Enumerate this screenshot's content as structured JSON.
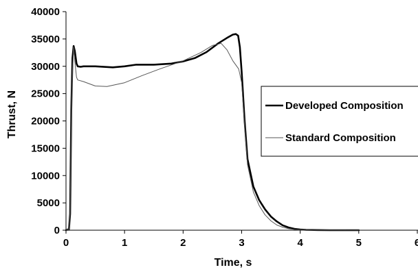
{
  "chart_data": {
    "type": "line",
    "title": "",
    "xlabel": "Time, s",
    "ylabel": "Thrust, N",
    "xlim": [
      0,
      6
    ],
    "ylim": [
      0,
      40000
    ],
    "x_ticks": [
      0,
      1,
      2,
      3,
      4,
      5,
      6
    ],
    "x_tick_labels": [
      "0",
      "1",
      "2",
      "3",
      "4",
      "5",
      "6"
    ],
    "y_ticks": [
      0,
      5000,
      10000,
      15000,
      20000,
      25000,
      30000,
      35000,
      40000
    ],
    "y_tick_labels": [
      "0",
      "5000",
      "10000",
      "15000",
      "20000",
      "25000",
      "30000",
      "35000",
      "40000"
    ],
    "grid": false,
    "legend_position": "right",
    "series": [
      {
        "name": "Developed Composition",
        "color": "#000000",
        "style": "thick",
        "x": [
          0,
          0.05,
          0.07,
          0.09,
          0.11,
          0.13,
          0.15,
          0.18,
          0.2,
          0.25,
          0.3,
          0.5,
          0.8,
          1.0,
          1.2,
          1.5,
          1.8,
          2.0,
          2.2,
          2.4,
          2.6,
          2.75,
          2.85,
          2.9,
          2.94,
          2.97,
          3.0,
          3.05,
          3.1,
          3.2,
          3.3,
          3.4,
          3.5,
          3.6,
          3.7,
          3.8,
          3.9,
          4.0,
          4.1,
          4.3,
          4.5,
          5.0
        ],
        "y": [
          0,
          200,
          3000,
          22000,
          31500,
          33700,
          32800,
          30500,
          30000,
          29900,
          30000,
          30000,
          29800,
          30000,
          30300,
          30300,
          30500,
          30900,
          31500,
          32600,
          34200,
          35200,
          35800,
          35900,
          35600,
          33500,
          29000,
          20000,
          13000,
          8000,
          5500,
          3800,
          2500,
          1600,
          900,
          500,
          250,
          120,
          60,
          20,
          5,
          0
        ]
      },
      {
        "name": "Standard Composition",
        "color": "#555555",
        "style": "thin",
        "x": [
          0,
          0.05,
          0.07,
          0.09,
          0.11,
          0.13,
          0.15,
          0.18,
          0.2,
          0.3,
          0.5,
          0.7,
          1.0,
          1.3,
          1.6,
          2.0,
          2.3,
          2.5,
          2.65,
          2.75,
          2.85,
          2.95,
          3.0,
          3.05,
          3.1,
          3.2,
          3.3,
          3.4,
          3.5,
          3.6,
          3.7,
          3.8,
          3.9,
          4.0,
          4.2,
          5.0
        ],
        "y": [
          0,
          200,
          3000,
          20000,
          29000,
          33500,
          31000,
          28000,
          27500,
          27200,
          26400,
          26300,
          27000,
          28300,
          29500,
          31000,
          32500,
          33800,
          34200,
          33000,
          31000,
          29500,
          27000,
          19000,
          12000,
          7000,
          4500,
          2800,
          1700,
          950,
          550,
          280,
          140,
          60,
          15,
          0
        ]
      }
    ]
  }
}
